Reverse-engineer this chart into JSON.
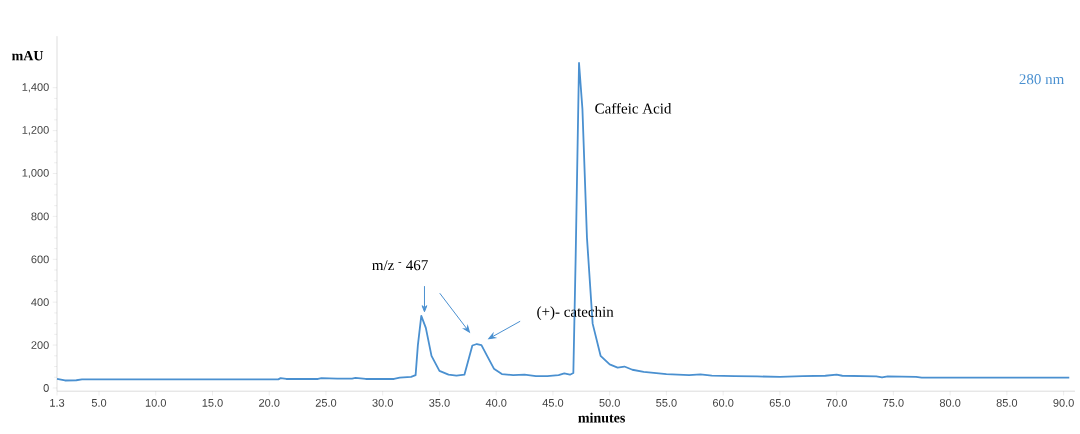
{
  "chart_data": {
    "type": "line",
    "xlabel": "minutes",
    "ylabel": "mAU",
    "x": [
      1.3,
      2.0,
      3.0,
      3.5,
      10,
      20.8,
      21.0,
      21.5,
      24.3,
      24.6,
      26,
      27.3,
      27.6,
      28.5,
      31.0,
      31.5,
      32.5,
      32.9,
      33.1,
      33.4,
      33.8,
      34.3,
      35,
      35.8,
      36.5,
      37.2,
      37.5,
      37.9,
      38.3,
      38.7,
      39.2,
      39.8,
      40.5,
      41.5,
      42.5,
      43.5,
      44.5,
      45.5,
      46.0,
      46.5,
      46.8,
      47.0,
      47.3,
      47.6,
      48.0,
      48.5,
      49.2,
      50,
      50.7,
      51.3,
      52,
      53,
      55,
      57,
      58,
      59,
      61,
      63,
      65,
      67,
      69,
      70,
      70.5,
      73.5,
      74,
      74.5,
      77,
      77.5,
      90.5
    ],
    "series": [
      {
        "name": "280 nm",
        "color": "#4a90d0",
        "values": [
          42,
          35,
          36,
          40,
          40,
          40,
          46,
          42,
          42,
          46,
          44,
          44,
          47,
          42,
          42,
          48,
          52,
          60,
          200,
          336,
          280,
          150,
          80,
          62,
          58,
          62,
          120,
          198,
          205,
          200,
          150,
          90,
          65,
          60,
          62,
          55,
          55,
          60,
          68,
          62,
          70,
          600,
          1515,
          1300,
          700,
          300,
          150,
          110,
          95,
          100,
          85,
          75,
          65,
          60,
          63,
          58,
          55,
          54,
          52,
          55,
          57,
          62,
          57,
          54,
          49,
          54,
          52,
          48,
          48
        ]
      }
    ],
    "xlim": [
      1.3,
      91
    ],
    "ylim": [
      -15,
      1640
    ],
    "xticks": [
      1.3,
      {
        "value": 5,
        "label": "5.0"
      },
      {
        "value": 10,
        "label": "10.0"
      },
      {
        "value": 15,
        "label": "15.0"
      },
      {
        "value": 20,
        "label": "20.0"
      },
      {
        "value": 25,
        "label": "25.0"
      },
      {
        "value": 30,
        "label": "30.0"
      },
      {
        "value": 35,
        "label": "35.0"
      },
      {
        "value": 40,
        "label": "40.0"
      },
      {
        "value": 45,
        "label": "45.0"
      },
      {
        "value": 50,
        "label": "50.0"
      },
      {
        "value": 55,
        "label": "55.0"
      },
      {
        "value": 60,
        "label": "60.0"
      },
      {
        "value": 65,
        "label": "65.0"
      },
      {
        "value": 70,
        "label": "70.0"
      },
      {
        "value": 75,
        "label": "75.0"
      },
      {
        "value": 80,
        "label": "80.0"
      },
      {
        "value": 85,
        "label": "85.0"
      },
      {
        "value": 90,
        "label": "90.0"
      }
    ],
    "yticks": [
      0,
      200,
      400,
      600,
      800,
      {
        "value": 1000,
        "label": "1,000"
      },
      {
        "value": 1200,
        "label": "1,200"
      },
      {
        "value": 1400,
        "label": "1,400"
      }
    ],
    "annotations": [
      "m/z $^{-}$ 467",
      "(+)- catechin",
      "Caffeic Acid"
    ],
    "legend": "top right",
    "grid": false,
    "marker": "none",
    "line_style": "solid"
  }
}
